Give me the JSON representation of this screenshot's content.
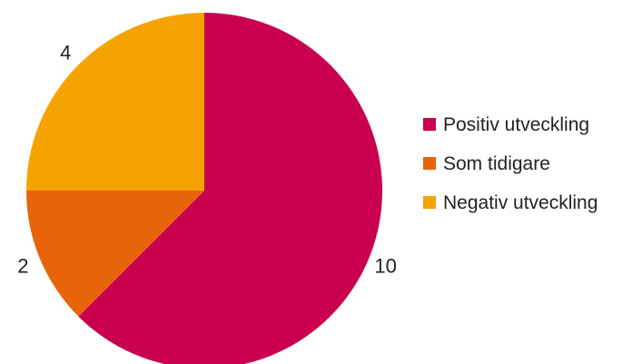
{
  "chart_data": {
    "type": "pie",
    "title": "",
    "categories": [
      "Positiv utveckling",
      "Som tidigare",
      "Negativ utveckling"
    ],
    "values": [
      10,
      2,
      4
    ],
    "data_labels": [
      "10",
      "2",
      "4"
    ],
    "colors": [
      "#c8004f",
      "#e8640a",
      "#f5a300"
    ],
    "start_angle_deg": 0,
    "direction": "clockwise",
    "legend": {
      "position": "right",
      "entries": [
        "Positiv utveckling",
        "Som tidigare",
        "Negativ utveckling"
      ]
    }
  }
}
